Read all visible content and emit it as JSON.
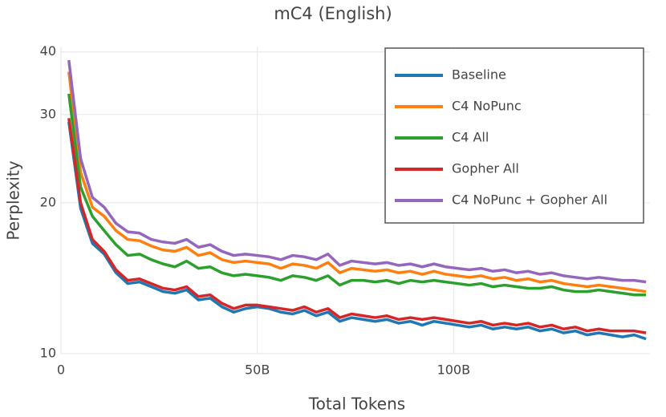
{
  "chart_data": {
    "type": "line",
    "title": "mC4 (English)",
    "x_label": "Total Tokens",
    "y_label": "Perplexity",
    "log_y": true,
    "grid": true,
    "legend": "top-right",
    "xlim": [
      0,
      150
    ],
    "ylim": [
      10,
      41
    ],
    "xticks": [
      0,
      {
        "value": 50,
        "label": "50B"
      },
      {
        "value": 100,
        "label": "100B"
      }
    ],
    "yticks": [
      10,
      20,
      30,
      40
    ],
    "x": [
      2,
      5,
      8,
      11,
      14,
      17,
      20,
      23,
      26,
      29,
      32,
      35,
      38,
      41,
      44,
      47,
      50,
      53,
      56,
      59,
      62,
      65,
      68,
      71,
      74,
      77,
      80,
      83,
      86,
      89,
      92,
      95,
      98,
      101,
      104,
      107,
      110,
      113,
      116,
      119,
      122,
      125,
      128,
      131,
      134,
      137,
      140,
      143,
      146,
      149
    ],
    "series": [
      {
        "name": "Baseline",
        "color": "#1f77b4",
        "values": [
          29,
          19.5,
          16.6,
          15.8,
          14.5,
          13.8,
          13.9,
          13.6,
          13.3,
          13.2,
          13.4,
          12.8,
          12.9,
          12.4,
          12.1,
          12.3,
          12.4,
          12.3,
          12.1,
          12.0,
          12.2,
          11.9,
          12.1,
          11.6,
          11.8,
          11.7,
          11.6,
          11.7,
          11.5,
          11.6,
          11.4,
          11.6,
          11.5,
          11.4,
          11.3,
          11.4,
          11.2,
          11.3,
          11.2,
          11.3,
          11.1,
          11.2,
          11.0,
          11.1,
          10.9,
          11.0,
          10.9,
          10.8,
          10.9,
          10.7
        ]
      },
      {
        "name": "C4 NoPunc",
        "color": "#ff7f0e",
        "values": [
          36.5,
          23,
          19.6,
          18.8,
          17.6,
          16.9,
          16.8,
          16.4,
          16.1,
          16.0,
          16.3,
          15.7,
          15.9,
          15.4,
          15.2,
          15.3,
          15.2,
          15.1,
          14.8,
          15.1,
          15.0,
          14.8,
          15.2,
          14.5,
          14.8,
          14.7,
          14.6,
          14.7,
          14.5,
          14.6,
          14.4,
          14.6,
          14.4,
          14.3,
          14.2,
          14.3,
          14.1,
          14.2,
          14.0,
          14.1,
          13.9,
          14.0,
          13.8,
          13.7,
          13.6,
          13.7,
          13.6,
          13.5,
          13.4,
          13.3
        ]
      },
      {
        "name": "C4 All",
        "color": "#2ca02c",
        "values": [
          33,
          21.5,
          18.8,
          17.6,
          16.5,
          15.7,
          15.8,
          15.4,
          15.1,
          14.9,
          15.3,
          14.8,
          14.9,
          14.5,
          14.3,
          14.4,
          14.3,
          14.2,
          14.0,
          14.3,
          14.2,
          14.0,
          14.3,
          13.7,
          14.0,
          14.0,
          13.9,
          14.0,
          13.8,
          14.0,
          13.9,
          14.0,
          13.9,
          13.8,
          13.7,
          13.8,
          13.6,
          13.7,
          13.6,
          13.5,
          13.5,
          13.6,
          13.4,
          13.3,
          13.3,
          13.4,
          13.3,
          13.2,
          13.1,
          13.1
        ]
      },
      {
        "name": "Gopher All",
        "color": "#d62728",
        "values": [
          29.5,
          20,
          16.9,
          16.0,
          14.7,
          14.0,
          14.1,
          13.8,
          13.5,
          13.4,
          13.6,
          13.0,
          13.1,
          12.6,
          12.3,
          12.5,
          12.5,
          12.4,
          12.3,
          12.2,
          12.4,
          12.1,
          12.3,
          11.8,
          12.0,
          11.9,
          11.8,
          11.9,
          11.7,
          11.8,
          11.7,
          11.8,
          11.7,
          11.6,
          11.5,
          11.6,
          11.4,
          11.5,
          11.4,
          11.5,
          11.3,
          11.4,
          11.2,
          11.3,
          11.1,
          11.2,
          11.1,
          11.1,
          11.1,
          11.0
        ]
      },
      {
        "name": "C4 NoPunc + Gopher All",
        "color": "#9467bd",
        "values": [
          38.5,
          24.5,
          20.5,
          19.6,
          18.2,
          17.5,
          17.4,
          16.9,
          16.7,
          16.6,
          16.9,
          16.3,
          16.5,
          16.0,
          15.7,
          15.8,
          15.7,
          15.6,
          15.4,
          15.7,
          15.6,
          15.4,
          15.8,
          15.0,
          15.3,
          15.2,
          15.1,
          15.2,
          15.0,
          15.1,
          14.9,
          15.1,
          14.9,
          14.8,
          14.7,
          14.8,
          14.6,
          14.7,
          14.5,
          14.6,
          14.4,
          14.5,
          14.3,
          14.2,
          14.1,
          14.2,
          14.1,
          14.0,
          14.0,
          13.9
        ]
      }
    ]
  }
}
